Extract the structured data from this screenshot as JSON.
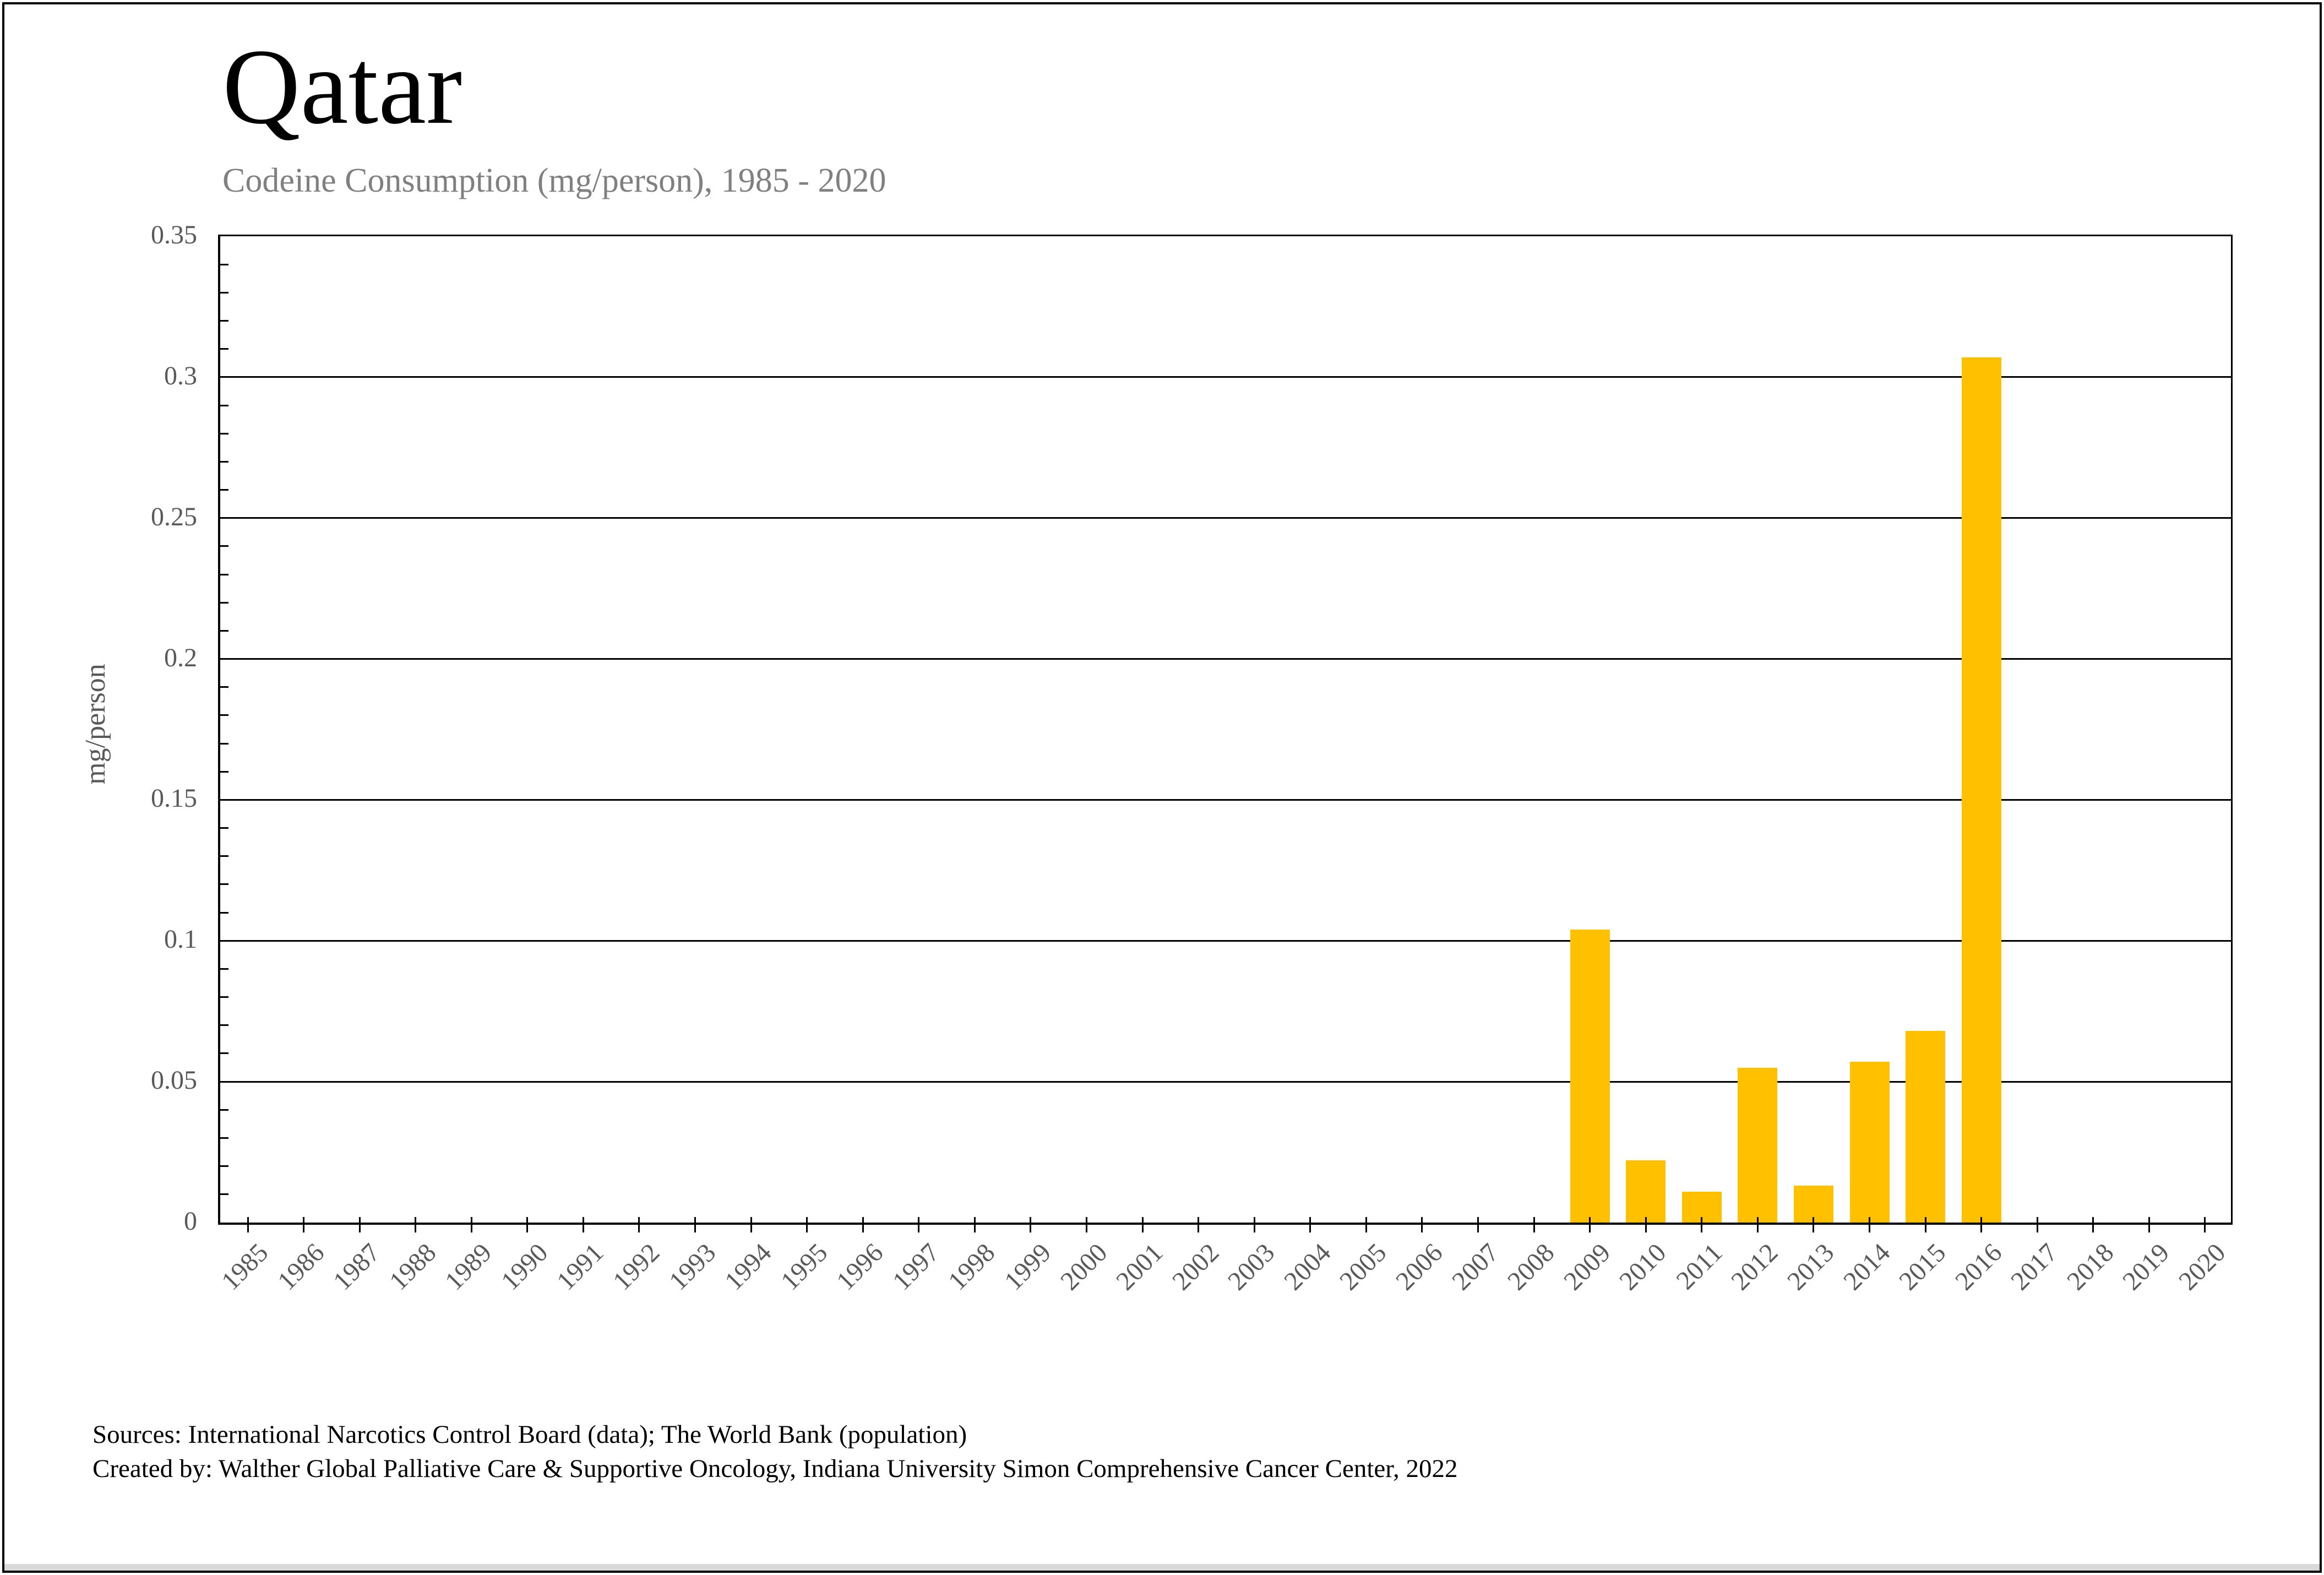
{
  "page": {
    "title": "Qatar",
    "subtitle": "Codeine Consumption (mg/person), 1985 - 2020",
    "footer": {
      "line1": "Sources: International Narcotics Control Board (data); The World Bank (population)",
      "line2": "Created by: Walther Global Palliative Care & Supportive Oncology, Indiana University Simon Comprehensive Cancer Center, 2022"
    }
  },
  "colors": {
    "bar": "#FFC000",
    "gridline": "#000000",
    "axis_line": "#000000",
    "title_text": "#000000",
    "subtitle_text": "#808080",
    "axis_label_text": "#595959",
    "source_text": "#000000",
    "page_border": "#000000",
    "bottom_strip": "#D9D9D9",
    "background": "#FFFFFF"
  },
  "chart_data": {
    "type": "bar",
    "title": "Qatar",
    "subtitle": "Codeine Consumption (mg/person), 1985 - 2020",
    "xlabel": "",
    "ylabel": "mg/person",
    "ylim": [
      0,
      0.35
    ],
    "ytick_interval": 0.05,
    "ytick_labels": [
      "0",
      "0.05",
      "0.1",
      "0.15",
      "0.2",
      "0.25",
      "0.3",
      "0.35"
    ],
    "y_minor_tick_interval": 0.01,
    "grid": "horizontal majors only",
    "legend": "none",
    "bar_color": "#FFC000",
    "categories": [
      "1985",
      "1986",
      "1987",
      "1988",
      "1989",
      "1990",
      "1991",
      "1992",
      "1993",
      "1994",
      "1995",
      "1996",
      "1997",
      "1998",
      "1999",
      "2000",
      "2001",
      "2002",
      "2003",
      "2004",
      "2005",
      "2006",
      "2007",
      "2008",
      "2009",
      "2010",
      "2011",
      "2012",
      "2013",
      "2014",
      "2015",
      "2016",
      "2017",
      "2018",
      "2019",
      "2020"
    ],
    "values": [
      0,
      0,
      0,
      0,
      0,
      0,
      0,
      0,
      0,
      0,
      0,
      0,
      0,
      0,
      0,
      0,
      0,
      0,
      0,
      0,
      0,
      0,
      0,
      0,
      0.104,
      0.022,
      0.011,
      0.055,
      0.013,
      0.057,
      0.068,
      0.307,
      0,
      0,
      0,
      0
    ]
  }
}
